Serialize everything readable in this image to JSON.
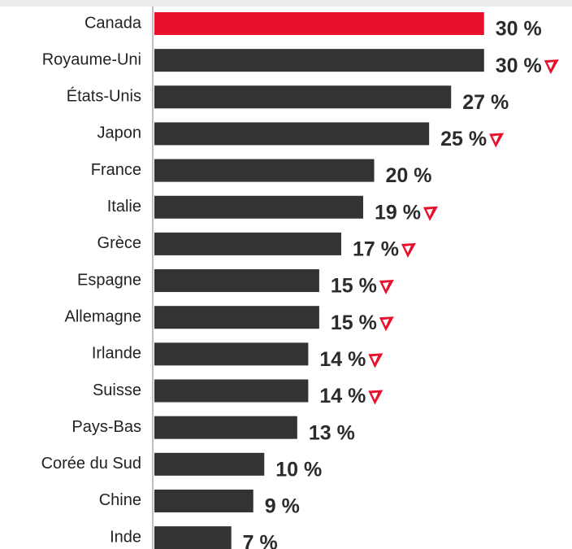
{
  "chart_data": {
    "type": "barh",
    "categories": [
      "Canada",
      "Royaume-Uni",
      "États-Unis",
      "Japon",
      "France",
      "Italie",
      "Grèce",
      "Espagne",
      "Allemagne",
      "Irlande",
      "Suisse",
      "Pays-Bas",
      "Corée du Sud",
      "Chine",
      "Inde"
    ],
    "values": [
      30,
      30,
      27,
      25,
      20,
      19,
      17,
      15,
      15,
      14,
      14,
      13,
      10,
      9,
      7
    ],
    "value_labels": [
      "30 %",
      "30 %",
      "27 %",
      "25 %",
      "20 %",
      "19 %",
      "17 %",
      "15 %",
      "15 %",
      "14 %",
      "14 %",
      "13 %",
      "10 %",
      "9 %",
      "7 %"
    ],
    "colors": [
      "#e8112d",
      "#333333",
      "#333333",
      "#333333",
      "#333333",
      "#333333",
      "#333333",
      "#333333",
      "#333333",
      "#333333",
      "#333333",
      "#333333",
      "#333333",
      "#333333",
      "#333333"
    ],
    "markers": [
      false,
      true,
      false,
      true,
      false,
      true,
      true,
      true,
      true,
      true,
      true,
      false,
      false,
      false,
      false
    ],
    "marker_color": "#e8112d",
    "xlim": [
      0,
      38
    ]
  }
}
